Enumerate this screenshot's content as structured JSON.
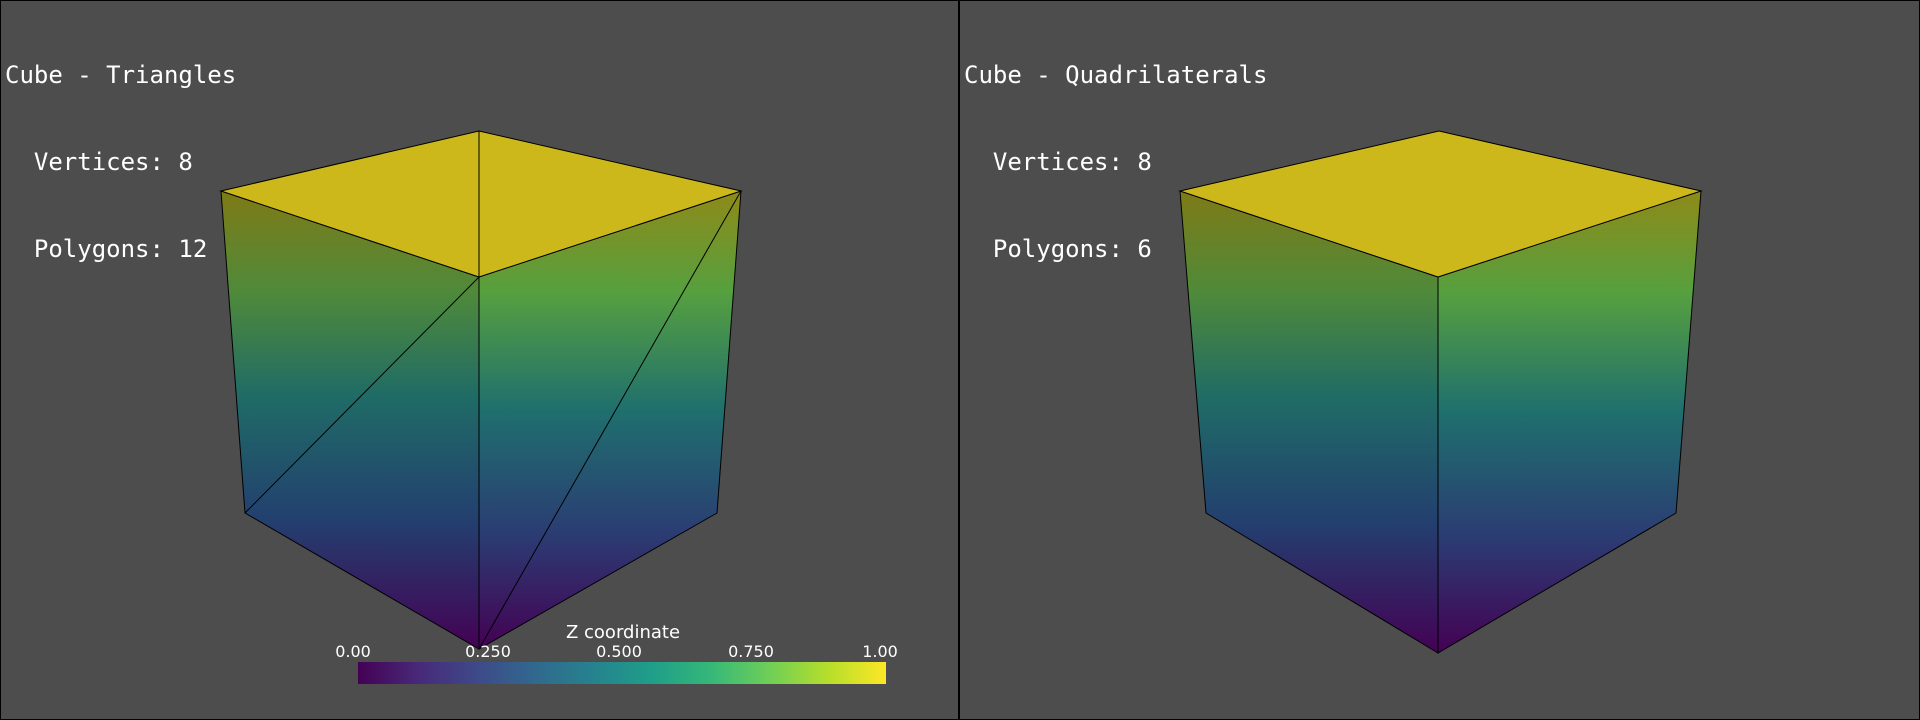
{
  "left_panel": {
    "title": "Cube - Triangles",
    "vertices_label": "  Vertices: 8",
    "polygons_label": "  Polygons: 12"
  },
  "right_panel": {
    "title": "Cube - Quadrilaterals",
    "vertices_label": "  Vertices: 8",
    "polygons_label": "  Polygons: 6"
  },
  "scalar_bar": {
    "title": "Z coordinate",
    "ticks": [
      "0.00",
      "0.250",
      "0.500",
      "0.750",
      "1.00"
    ],
    "colormap": "viridis"
  },
  "colors": {
    "background": "#4d4d4d",
    "top_face": "#cdb81c",
    "edge": "#000000"
  }
}
